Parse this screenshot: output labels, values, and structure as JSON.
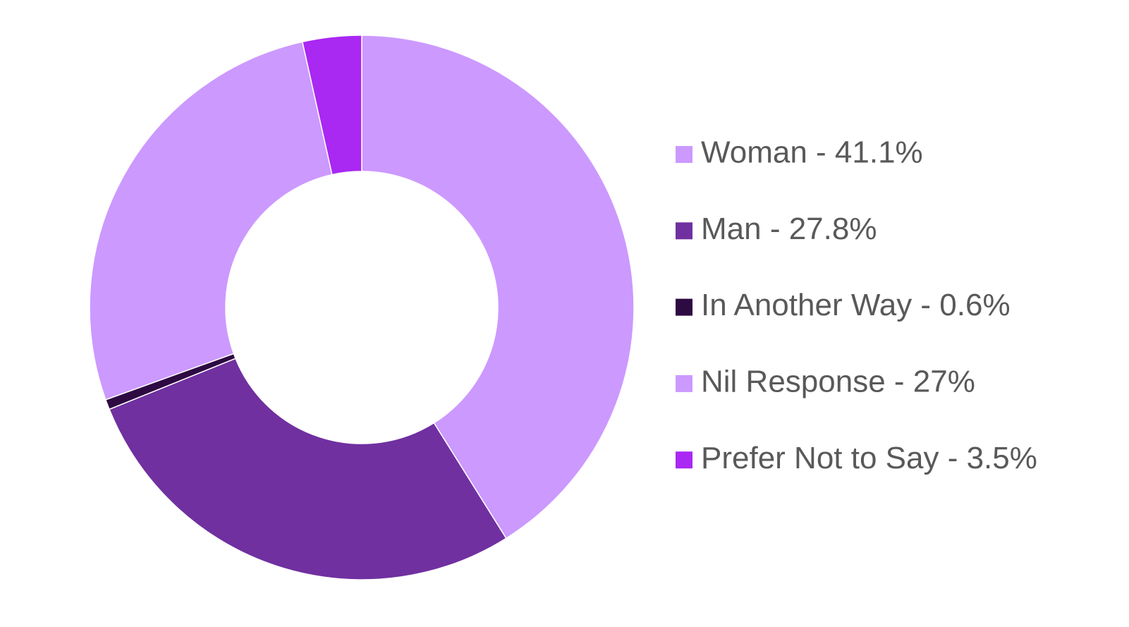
{
  "chart_data": {
    "type": "donut",
    "categories": [
      "Woman - 41.1%",
      "Man - 27.8%",
      "In Another Way - 0.6%",
      "Nil Response - 27%",
      "Prefer Not to Say - 3.5%"
    ],
    "values": [
      41.1,
      27.8,
      0.6,
      27,
      3.5
    ],
    "colors": [
      "#cc99ff",
      "#7030a0",
      "#2e0a42",
      "#cc99ff",
      "#a928f2"
    ],
    "legend": "right"
  }
}
